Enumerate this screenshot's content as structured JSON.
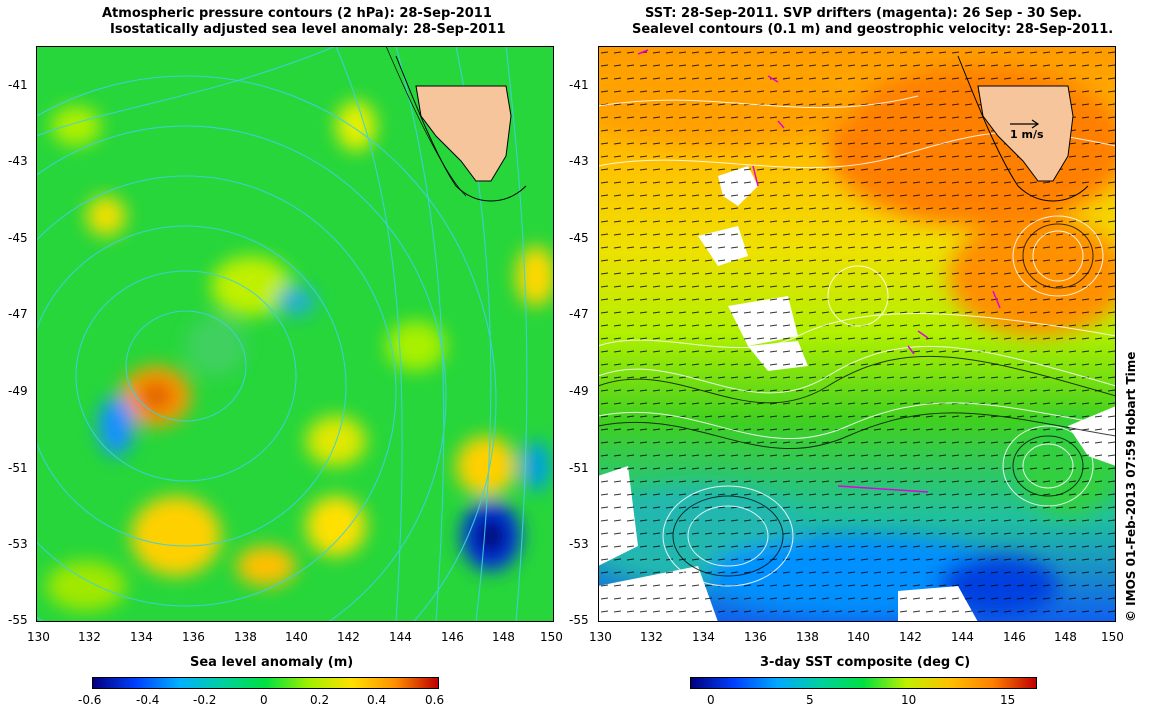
{
  "left": {
    "title1": "Atmospheric pressure contours (2 hPa): 28-Sep-2011",
    "title2": "Isostatically adjusted sea level anomaly: 28-Sep-2011",
    "colorbar_label": "Sea level anomaly (m)",
    "colorbar_ticks": [
      "-0.6",
      "-0.4",
      "-0.2",
      "0",
      "0.2",
      "0.4",
      "0.6"
    ]
  },
  "right": {
    "title1": "SST: 28-Sep-2011. SVP drifters (magenta): 26 Sep - 30 Sep.",
    "title2": "Sealevel contours (0.1 m) and geostrophic velocity: 28-Sep-2011.",
    "colorbar_label": "3-day SST composite (deg C)",
    "colorbar_ticks": [
      "0",
      "5",
      "10",
      "15"
    ],
    "scale_label": "1 m/s"
  },
  "axes": {
    "lat_ticks": [
      "-41",
      "-43",
      "-45",
      "-47",
      "-49",
      "-51",
      "-53",
      "-55"
    ],
    "lon_ticks": [
      "130",
      "132",
      "134",
      "136",
      "138",
      "140",
      "142",
      "144",
      "146",
      "148",
      "150"
    ]
  },
  "credit": "© IMOS 01-Feb-2013 07:59 Hobart Time",
  "colors": {
    "land": "#f6c59b",
    "sla_cmap": [
      "#00007f",
      "#0050ff",
      "#00b4ff",
      "#00d09a",
      "#00e63c",
      "#a0f000",
      "#ffd200",
      "#ff7a00",
      "#b40000"
    ],
    "sst_cmap": [
      "#00007f",
      "#0040ff",
      "#00a8ff",
      "#00d0a0",
      "#00e040",
      "#c0f000",
      "#ffc000",
      "#ff8000",
      "#c00000"
    ]
  }
}
